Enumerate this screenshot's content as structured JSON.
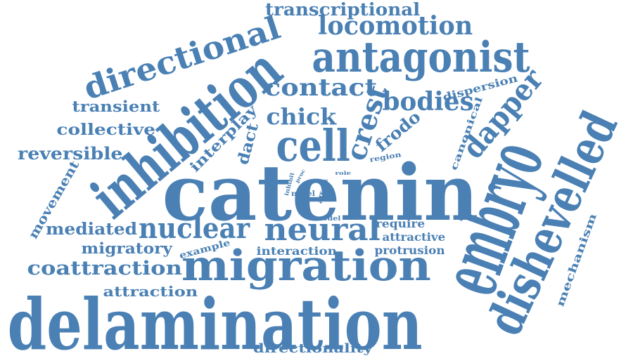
{
  "cloud": {
    "color": "#4a80b4",
    "words": [
      {
        "id": "catenin",
        "text": "catenin"
      },
      {
        "id": "migration",
        "text": "migration"
      },
      {
        "id": "delamination",
        "text": "delamination"
      },
      {
        "id": "embryo",
        "text": "embryo"
      },
      {
        "id": "inhibition",
        "text": "inhibition"
      },
      {
        "id": "dishevelled",
        "text": "dishevelled"
      },
      {
        "id": "antagonist",
        "text": "antagonist"
      },
      {
        "id": "directional",
        "text": "directional"
      },
      {
        "id": "neural",
        "text": "neural"
      },
      {
        "id": "nuclear",
        "text": "nuclear"
      },
      {
        "id": "cell",
        "text": "cell"
      },
      {
        "id": "locomotion",
        "text": "locomotion"
      },
      {
        "id": "contact",
        "text": "contact"
      },
      {
        "id": "bodies",
        "text": "bodies"
      },
      {
        "id": "crest",
        "text": "crest"
      },
      {
        "id": "dapper",
        "text": "dapper"
      },
      {
        "id": "transcriptional",
        "text": "transcriptional"
      },
      {
        "id": "chick",
        "text": "chick"
      },
      {
        "id": "coattraction",
        "text": "coattraction"
      },
      {
        "id": "mediated",
        "text": "mediated"
      },
      {
        "id": "reversible",
        "text": "reversible"
      },
      {
        "id": "collective",
        "text": "collective"
      },
      {
        "id": "transient",
        "text": "transient"
      },
      {
        "id": "migratory",
        "text": "migratory"
      },
      {
        "id": "attraction",
        "text": "attraction"
      },
      {
        "id": "directionality",
        "text": "directionality"
      },
      {
        "id": "frodo",
        "text": "frodo"
      },
      {
        "id": "interplay",
        "text": "interplay"
      },
      {
        "id": "dact",
        "text": "dact"
      },
      {
        "id": "dispersion",
        "text": "dispersion"
      },
      {
        "id": "canonical",
        "text": "canonical"
      },
      {
        "id": "mechanism",
        "text": "mechanism"
      },
      {
        "id": "movement",
        "text": "movement"
      },
      {
        "id": "require",
        "text": "require"
      },
      {
        "id": "attractive",
        "text": "attractive"
      },
      {
        "id": "protrusion",
        "text": "protrusion"
      },
      {
        "id": "interaction",
        "text": "interaction"
      },
      {
        "id": "example",
        "text": "example"
      },
      {
        "id": "region",
        "text": "region"
      },
      {
        "id": "model",
        "text": "model"
      },
      {
        "id": "novel",
        "text": "novel"
      },
      {
        "id": "affect",
        "text": "affect"
      },
      {
        "id": "inhibit",
        "text": "inhibit"
      },
      {
        "id": "proc",
        "text": "proc"
      },
      {
        "id": "role",
        "text": "role"
      }
    ]
  }
}
